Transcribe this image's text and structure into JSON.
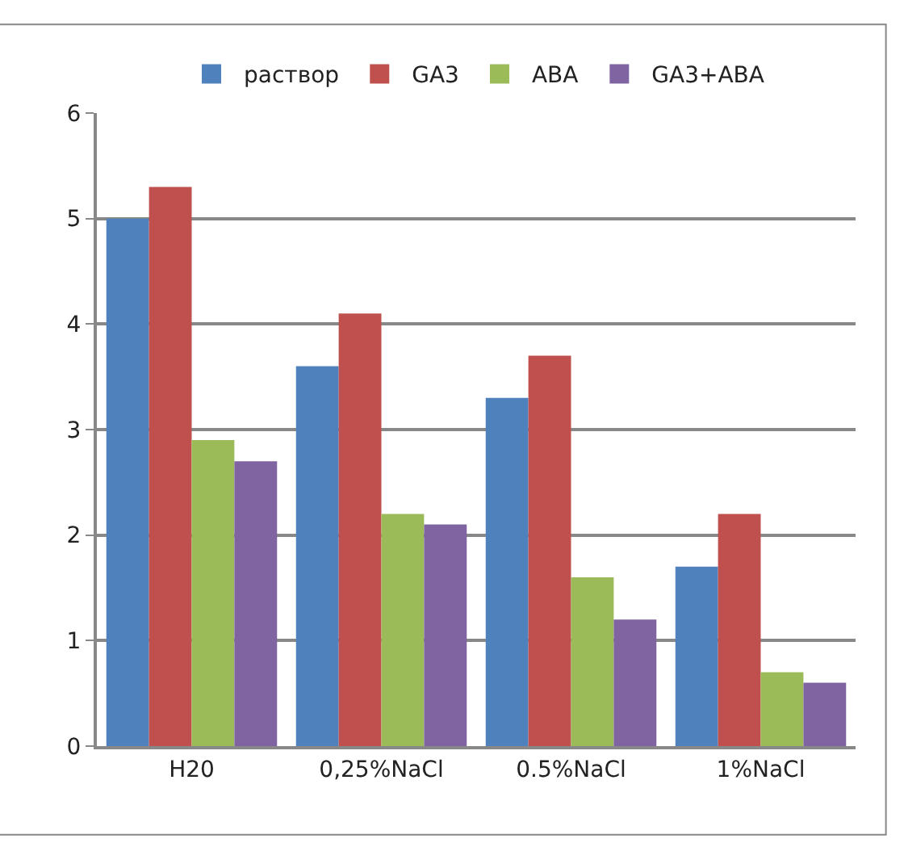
{
  "chart_data": {
    "type": "bar",
    "categories": [
      "H20",
      "0,25%NaCl",
      "0.5%NaCl",
      "1%NaCl"
    ],
    "series": [
      {
        "name": "раствор",
        "color": "#4f81bd",
        "values": [
          5.0,
          3.6,
          3.3,
          1.7
        ]
      },
      {
        "name": "GA3",
        "color": "#c0504d",
        "values": [
          5.3,
          4.1,
          3.7,
          2.2
        ]
      },
      {
        "name": "ABA",
        "color": "#9bbb59",
        "values": [
          2.9,
          2.2,
          1.6,
          0.7
        ]
      },
      {
        "name": "GA3+ABA",
        "color": "#8064a2",
        "values": [
          2.7,
          2.1,
          1.2,
          0.6
        ]
      }
    ],
    "ylim": [
      0,
      6
    ],
    "yticks": [
      0,
      1,
      2,
      3,
      4,
      5,
      6
    ],
    "grid": "y",
    "legend": "top"
  }
}
